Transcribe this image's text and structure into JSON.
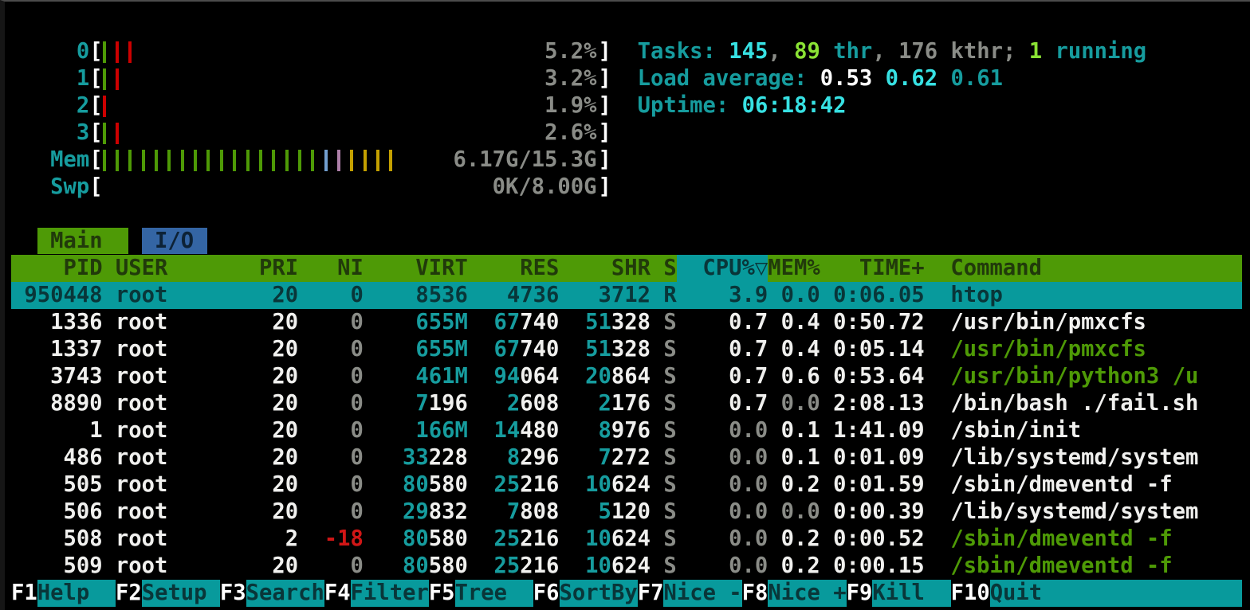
{
  "palette": {
    "background": "#000000",
    "header_bg": "#4e9a06",
    "selected_row_bg": "#089a9c",
    "fnkey_bg": "#089a9c",
    "tab_io_bg": "#3465a4",
    "cyan_text": "#169c9e",
    "bright_cyan": "#37e1e3",
    "bright_green": "#8ae234",
    "command_green": "#4e9a06",
    "nice_red": "#d01616",
    "dim_gray": "#8a8c87",
    "bar_green": "#4e9a06",
    "bar_red": "#cc0000",
    "bar_blue": "#729fcf",
    "bar_purple": "#ad7fa8",
    "bar_yellow": "#c4a000"
  },
  "meters": {
    "cpus": [
      {
        "label": "0",
        "bars": [
          "green",
          "red",
          "red"
        ],
        "value": "5.2%"
      },
      {
        "label": "1",
        "bars": [
          "green",
          "red"
        ],
        "value": "3.2%"
      },
      {
        "label": "2",
        "bars": [
          "red"
        ],
        "value": "1.9%"
      },
      {
        "label": "3",
        "bars": [
          "green",
          "red"
        ],
        "value": "2.6%"
      }
    ],
    "mem": {
      "label": "Mem",
      "bars": [
        "green",
        "green",
        "green",
        "green",
        "green",
        "green",
        "green",
        "green",
        "green",
        "green",
        "green",
        "green",
        "green",
        "green",
        "green",
        "green",
        "green",
        "blue",
        "purple",
        "yellow",
        "yellow",
        "yellow",
        "yellow"
      ],
      "value": "6.17G/15.3G"
    },
    "swp": {
      "label": "Swp",
      "bars": [],
      "value": "0K/8.00G"
    },
    "open_bracket": "[",
    "close_bracket": "]"
  },
  "summary": {
    "tasks": {
      "label": "Tasks: ",
      "count": "145",
      "sep1": ", ",
      "threads": "89",
      "thr_label": " thr",
      "sep2": ", ",
      "kthreads": "176",
      "kthr_label": " kthr",
      "sep3": "; ",
      "running": "1",
      "running_label": " running"
    },
    "load": {
      "label": "Load average: ",
      "one_min": "0.53 ",
      "five_min": "0.62 ",
      "fifteen_min": "0.61"
    },
    "uptime": {
      "label": "Uptime: ",
      "value": "06:18:42"
    }
  },
  "tabs": [
    {
      "label": "Main"
    },
    {
      "label": "I/O"
    }
  ],
  "table": {
    "headers": {
      "pid": "PID",
      "user": "USER",
      "pri": "PRI",
      "ni": "NI",
      "virt": "VIRT",
      "res": "RES",
      "shr": "SHR",
      "s": "S",
      "cpu": "CPU%▽",
      "mem": "MEM%",
      "time": "TIME+",
      "command": "Command"
    },
    "rows": [
      {
        "pid": "950448",
        "user": "root",
        "pri": "20",
        "ni": "0",
        "virt": [
          [
            "8536",
            "norm"
          ]
        ],
        "res": [
          [
            "4736",
            "norm"
          ]
        ],
        "shr": [
          [
            "3712",
            "norm"
          ]
        ],
        "s": "R",
        "cpu": "3.9",
        "mem": "0.0",
        "time": "0:06.05",
        "command": "htop",
        "selected": true
      },
      {
        "pid": "1336",
        "user": "root",
        "pri": "20",
        "ni": "0",
        "ni_style": "gray",
        "virt": [
          [
            "655M",
            "mb"
          ]
        ],
        "res": [
          [
            "67",
            "mb"
          ],
          [
            "740",
            "norm"
          ]
        ],
        "shr": [
          [
            "51",
            "mb"
          ],
          [
            "328",
            "norm"
          ]
        ],
        "s": "S",
        "cpu": "0.7",
        "mem": "0.4",
        "time": "0:50.72",
        "command": "/usr/bin/pmxcfs",
        "selected": false
      },
      {
        "pid": "1337",
        "user": "root",
        "pri": "20",
        "ni": "0",
        "ni_style": "gray",
        "virt": [
          [
            "655M",
            "mb"
          ]
        ],
        "res": [
          [
            "67",
            "mb"
          ],
          [
            "740",
            "norm"
          ]
        ],
        "shr": [
          [
            "51",
            "mb"
          ],
          [
            "328",
            "norm"
          ]
        ],
        "s": "S",
        "cpu": "0.7",
        "mem": "0.4",
        "time": "0:05.14",
        "command": "/usr/bin/pmxcfs",
        "command_style": "green",
        "selected": false
      },
      {
        "pid": "3743",
        "user": "root",
        "pri": "20",
        "ni": "0",
        "ni_style": "gray",
        "virt": [
          [
            "461M",
            "mb"
          ]
        ],
        "res": [
          [
            "94",
            "mb"
          ],
          [
            "064",
            "norm"
          ]
        ],
        "shr": [
          [
            "20",
            "mb"
          ],
          [
            "864",
            "norm"
          ]
        ],
        "s": "S",
        "cpu": "0.7",
        "mem": "0.6",
        "time": "0:53.64",
        "command": "/usr/bin/python3 /u",
        "command_style": "green",
        "selected": false
      },
      {
        "pid": "8890",
        "user": "root",
        "pri": "20",
        "ni": "0",
        "ni_style": "gray",
        "virt": [
          [
            "7",
            "mb"
          ],
          [
            "196",
            "norm"
          ]
        ],
        "res": [
          [
            "2",
            "mb"
          ],
          [
            "608",
            "norm"
          ]
        ],
        "shr": [
          [
            "2",
            "mb"
          ],
          [
            "176",
            "norm"
          ]
        ],
        "s": "S",
        "cpu": "0.7",
        "mem": "0.0",
        "mem_style": "dim",
        "time": "2:08.13",
        "command": "/bin/bash ./fail.sh",
        "selected": false
      },
      {
        "pid": "1",
        "user": "root",
        "pri": "20",
        "ni": "0",
        "ni_style": "gray",
        "virt": [
          [
            "166M",
            "mb"
          ]
        ],
        "res": [
          [
            "14",
            "mb"
          ],
          [
            "480",
            "norm"
          ]
        ],
        "shr": [
          [
            "8",
            "mb"
          ],
          [
            "976",
            "norm"
          ]
        ],
        "s": "S",
        "cpu": "0.0",
        "cpu_style": "dim",
        "mem": "0.1",
        "time": "1:41.09",
        "command": "/sbin/init",
        "selected": false
      },
      {
        "pid": "486",
        "user": "root",
        "pri": "20",
        "ni": "0",
        "ni_style": "gray",
        "virt": [
          [
            "33",
            "mb"
          ],
          [
            "228",
            "norm"
          ]
        ],
        "res": [
          [
            "8",
            "mb"
          ],
          [
            "296",
            "norm"
          ]
        ],
        "shr": [
          [
            "7",
            "mb"
          ],
          [
            "272",
            "norm"
          ]
        ],
        "s": "S",
        "cpu": "0.0",
        "cpu_style": "dim",
        "mem": "0.1",
        "time": "0:01.09",
        "command": "/lib/systemd/system",
        "selected": false
      },
      {
        "pid": "505",
        "user": "root",
        "pri": "20",
        "ni": "0",
        "ni_style": "gray",
        "virt": [
          [
            "80",
            "mb"
          ],
          [
            "580",
            "norm"
          ]
        ],
        "res": [
          [
            "25",
            "mb"
          ],
          [
            "216",
            "norm"
          ]
        ],
        "shr": [
          [
            "10",
            "mb"
          ],
          [
            "624",
            "norm"
          ]
        ],
        "s": "S",
        "cpu": "0.0",
        "cpu_style": "dim",
        "mem": "0.2",
        "time": "0:01.59",
        "command": "/sbin/dmeventd -f",
        "selected": false
      },
      {
        "pid": "506",
        "user": "root",
        "pri": "20",
        "ni": "0",
        "ni_style": "gray",
        "virt": [
          [
            "29",
            "mb"
          ],
          [
            "832",
            "norm"
          ]
        ],
        "res": [
          [
            "7",
            "mb"
          ],
          [
            "808",
            "norm"
          ]
        ],
        "shr": [
          [
            "5",
            "mb"
          ],
          [
            "120",
            "norm"
          ]
        ],
        "s": "S",
        "cpu": "0.0",
        "cpu_style": "dim",
        "mem": "0.0",
        "mem_style": "dim",
        "time": "0:00.39",
        "command": "/lib/systemd/system",
        "selected": false
      },
      {
        "pid": "508",
        "user": "root",
        "pri": "2",
        "ni": "-18",
        "ni_style": "red",
        "virt": [
          [
            "80",
            "mb"
          ],
          [
            "580",
            "norm"
          ]
        ],
        "res": [
          [
            "25",
            "mb"
          ],
          [
            "216",
            "norm"
          ]
        ],
        "shr": [
          [
            "10",
            "mb"
          ],
          [
            "624",
            "norm"
          ]
        ],
        "s": "S",
        "cpu": "0.0",
        "cpu_style": "dim",
        "mem": "0.2",
        "time": "0:00.52",
        "command": "/sbin/dmeventd -f",
        "command_style": "green",
        "selected": false
      },
      {
        "pid": "509",
        "user": "root",
        "pri": "20",
        "ni": "0",
        "ni_style": "gray",
        "virt": [
          [
            "80",
            "mb"
          ],
          [
            "580",
            "norm"
          ]
        ],
        "res": [
          [
            "25",
            "mb"
          ],
          [
            "216",
            "norm"
          ]
        ],
        "shr": [
          [
            "10",
            "mb"
          ],
          [
            "624",
            "norm"
          ]
        ],
        "s": "S",
        "cpu": "0.0",
        "cpu_style": "dim",
        "mem": "0.2",
        "time": "0:00.15",
        "command": "/sbin/dmeventd -f",
        "command_style": "green",
        "selected": false
      }
    ]
  },
  "fkeys": [
    {
      "key": "F1",
      "label": "Help"
    },
    {
      "key": "F2",
      "label": "Setup"
    },
    {
      "key": "F3",
      "label": "Search"
    },
    {
      "key": "F4",
      "label": "Filter"
    },
    {
      "key": "F5",
      "label": "Tree"
    },
    {
      "key": "F6",
      "label": "SortBy"
    },
    {
      "key": "F7",
      "label": "Nice -"
    },
    {
      "key": "F8",
      "label": "Nice +"
    },
    {
      "key": "F9",
      "label": "Kill"
    },
    {
      "key": "F10",
      "label": "Quit"
    }
  ]
}
